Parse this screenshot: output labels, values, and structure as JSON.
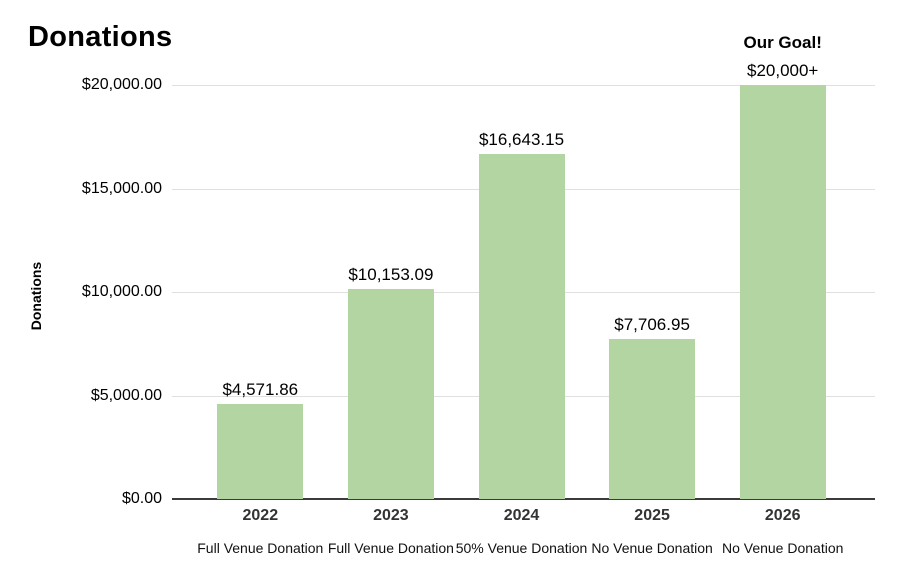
{
  "chart_data": {
    "type": "bar",
    "title": "Donations",
    "ylabel": "Donations",
    "ylim": [
      0,
      20000
    ],
    "grid": true,
    "bar_color": "#b2d5a2",
    "gridline_color": "#e0e0e0",
    "baseline_color": "#3b3b3b",
    "y_ticks": [
      {
        "value": 0,
        "label": "$0.00"
      },
      {
        "value": 5000,
        "label": "$5,000.00"
      },
      {
        "value": 10000,
        "label": "$10,000.00"
      },
      {
        "value": 15000,
        "label": "$15,000.00"
      },
      {
        "value": 20000,
        "label": "$20,000.00"
      }
    ],
    "categories": [
      "2022",
      "2023",
      "2024",
      "2025",
      "2026"
    ],
    "sub_labels": [
      "Full Venue Donation",
      "Full Venue Donation",
      "50% Venue Donation",
      "No Venue Donation",
      "No Venue Donation"
    ],
    "values": [
      4571.86,
      10153.09,
      16643.15,
      7706.95,
      20000
    ],
    "value_labels": [
      "$4,571.86",
      "$10,153.09",
      "$16,643.15",
      "$7,706.95",
      "$20,000+"
    ],
    "goal_annotation": {
      "text": "Our Goal!",
      "bar_index": 4
    }
  }
}
